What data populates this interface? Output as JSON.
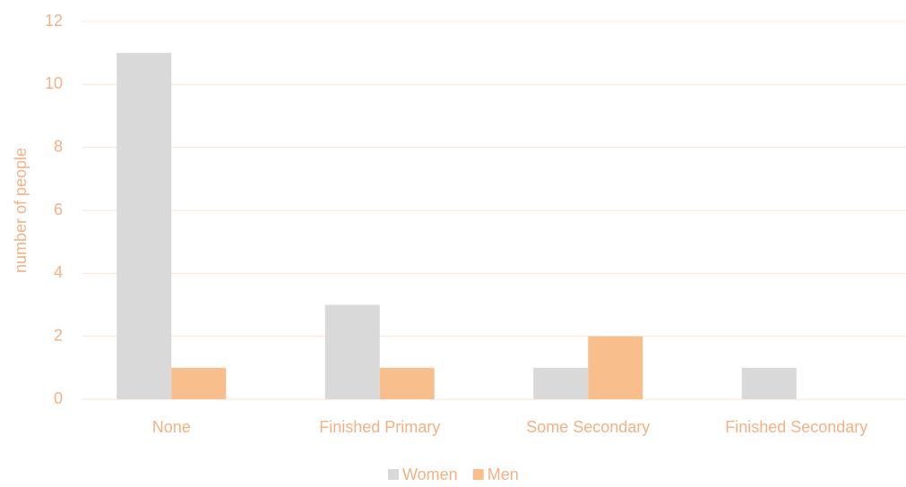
{
  "chart_data": {
    "type": "bar",
    "y_label": "number of people",
    "categories": [
      "None",
      "Finished Primary",
      "Some Secondary",
      "Finished Secondary"
    ],
    "series": [
      {
        "name": "Women",
        "color": "#d9d9d9",
        "values": [
          11,
          3,
          1,
          1
        ]
      },
      {
        "name": "Men",
        "color": "#f8bf8d",
        "values": [
          1,
          1,
          2,
          0
        ]
      }
    ],
    "ylim": [
      0,
      12
    ],
    "yticks": [
      0,
      2,
      4,
      6,
      8,
      10,
      12
    ],
    "grid": true,
    "legend": "bottom"
  }
}
